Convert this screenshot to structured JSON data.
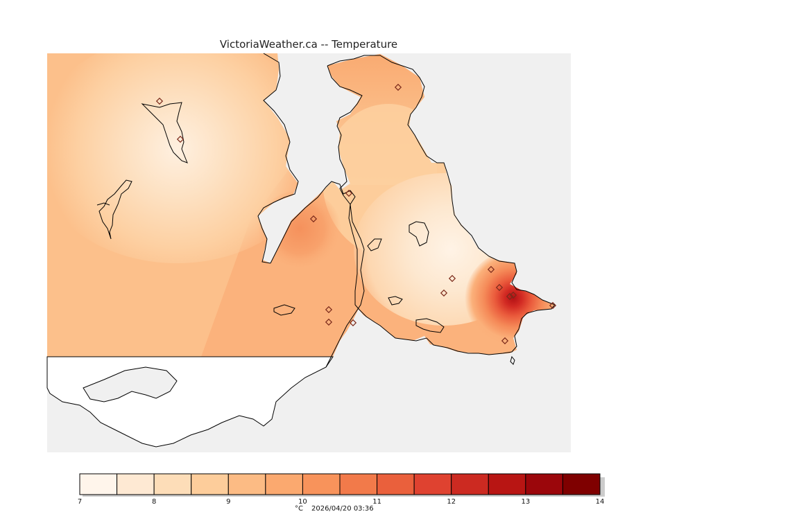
{
  "title": "VictoriaWeather.ca -- Temperature",
  "legend": {
    "unit": "°C",
    "timestamp": "2026/04/20 03:36",
    "range_min": 7,
    "range_max": 14,
    "step": 0.5,
    "tick_labels": [
      "7",
      "8",
      "9",
      "10",
      "11",
      "12",
      "13",
      "14"
    ],
    "colors": [
      "#fff5eb",
      "#fee9d3",
      "#fdddb8",
      "#fdcd9b",
      "#fcbb84",
      "#fba96f",
      "#f8935b",
      "#f27a4a",
      "#ea603c",
      "#df4230",
      "#cc2a21",
      "#b81513",
      "#9b060b",
      "#7f0000"
    ]
  },
  "colors": {
    "background": "#f0f0f0",
    "outline": "#000000",
    "station_marker": "#7b2a1b"
  },
  "chart_data": {
    "type": "heatmap",
    "title": "VictoriaWeather.ca -- Temperature",
    "units": "°C",
    "color_range": [
      7,
      14
    ],
    "observed_range_approx": [
      7.5,
      13
    ],
    "station_count": 16,
    "hotspot": {
      "value_approx": 13,
      "location": "south-east coast near Oak Bay"
    },
    "coolest_areas": {
      "value_approx": 7.5,
      "location": "north-west (Salt Spring Island) and central peninsula"
    }
  }
}
